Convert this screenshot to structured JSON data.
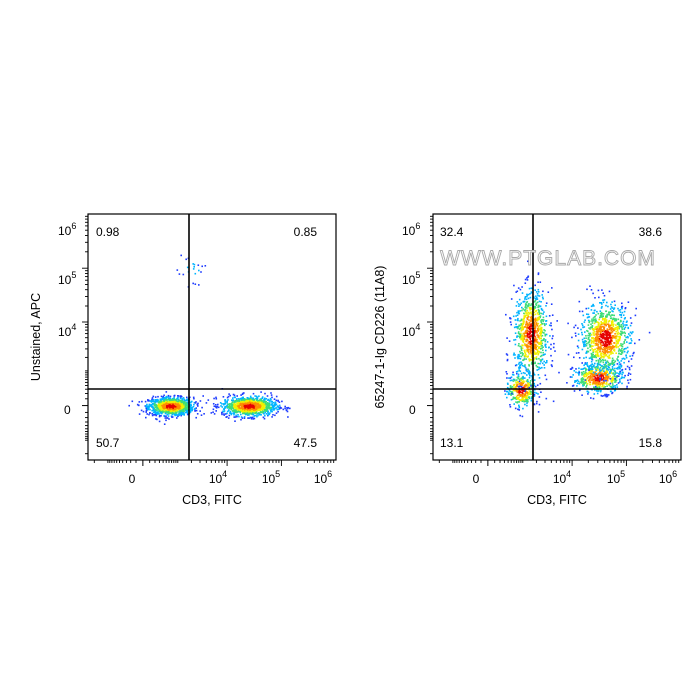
{
  "watermark": "WWW.PTGLAB.COM",
  "colors": {
    "axis": "#000000",
    "gate": "#000000",
    "density_ramp": [
      "#1e3cff",
      "#00b4ff",
      "#3cdc78",
      "#f0f000",
      "#ff8c00",
      "#e60000"
    ]
  },
  "chart_data": [
    {
      "type": "scatter",
      "plot": "flow-cytometry-density",
      "title": "",
      "xlabel": "CD3, FITC",
      "ylabel": "Unstained, APC",
      "x_scale": "biexponential",
      "y_scale": "biexponential",
      "x_ticks": [
        {
          "base": "0",
          "exp": ""
        },
        {
          "base": "10",
          "exp": "4"
        },
        {
          "base": "10",
          "exp": "5"
        },
        {
          "base": "10",
          "exp": "6"
        }
      ],
      "y_ticks": [
        {
          "base": "0",
          "exp": ""
        },
        {
          "base": "10",
          "exp": "4"
        },
        {
          "base": "10",
          "exp": "5"
        },
        {
          "base": "10",
          "exp": "6"
        }
      ],
      "quadrants": {
        "upper_left": "0.98",
        "upper_right": "0.85",
        "lower_left": "50.7",
        "lower_right": "47.5"
      },
      "populations": [
        {
          "x_center": 650,
          "y_center": 0,
          "share": 0.52
        },
        {
          "x_center": 25000,
          "y_center": 0,
          "share": 0.46
        },
        {
          "x_center": 2000,
          "y_center": 90000,
          "share": 0.01
        }
      ]
    },
    {
      "type": "scatter",
      "plot": "flow-cytometry-density",
      "title": "",
      "xlabel": "CD3, FITC",
      "ylabel": "65247-1-Ig CD226 (11A8)",
      "x_scale": "biexponential",
      "y_scale": "biexponential",
      "x_ticks": [
        {
          "base": "0",
          "exp": ""
        },
        {
          "base": "10",
          "exp": "4"
        },
        {
          "base": "10",
          "exp": "5"
        },
        {
          "base": "10",
          "exp": "6"
        }
      ],
      "y_ticks": [
        {
          "base": "0",
          "exp": ""
        },
        {
          "base": "10",
          "exp": "4"
        },
        {
          "base": "10",
          "exp": "5"
        },
        {
          "base": "10",
          "exp": "6"
        }
      ],
      "quadrants": {
        "upper_left": "32.4",
        "upper_right": "38.6",
        "lower_left": "13.1",
        "lower_right": "15.8"
      },
      "populations": [
        {
          "x_center": 900,
          "y_center": 300,
          "share": 0.13
        },
        {
          "x_center": 1500,
          "y_center": 6000,
          "share": 0.32
        },
        {
          "x_center": 30000,
          "y_center": 700,
          "share": 0.18
        },
        {
          "x_center": 40000,
          "y_center": 5000,
          "share": 0.37
        }
      ]
    }
  ]
}
